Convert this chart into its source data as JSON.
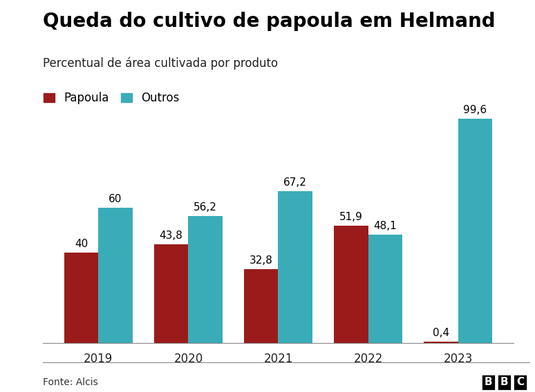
{
  "title": "Queda do cultivo de papoula em Helmand",
  "subtitle": "Percentual de área cultivada por produto",
  "years": [
    "2019",
    "2020",
    "2021",
    "2022",
    "2023"
  ],
  "papoula": [
    40,
    43.8,
    32.8,
    51.9,
    0.4
  ],
  "outros": [
    60,
    56.2,
    67.2,
    48.1,
    99.6
  ],
  "papoula_labels": [
    "40",
    "43,8",
    "32,8",
    "51,9",
    "0,4"
  ],
  "outros_labels": [
    "60",
    "56,2",
    "67,2",
    "48,1",
    "99,6"
  ],
  "color_papoula": "#9B1B1B",
  "color_outros": "#3AACB8",
  "legend_papoula": "Papoula",
  "legend_outros": "Outros",
  "source": "Fonte: Alcis",
  "background_color": "#FFFFFF",
  "bar_width": 0.38,
  "ylim": [
    0,
    110
  ],
  "label_fontsize": 11,
  "title_fontsize": 20,
  "subtitle_fontsize": 12,
  "tick_fontsize": 12,
  "legend_fontsize": 12,
  "source_fontsize": 10
}
